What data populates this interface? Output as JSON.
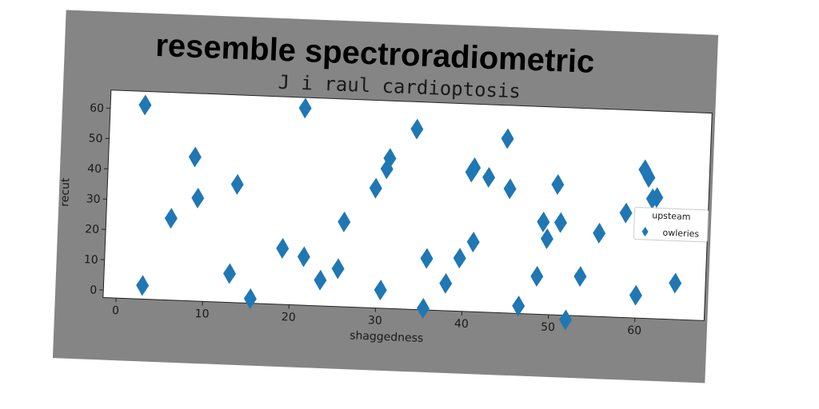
{
  "chart_data": {
    "type": "scatter",
    "figure_title": "resemble spectroradiometric",
    "title": "J i raul cardioptosis",
    "xlabel": "shaggedness",
    "ylabel": "recut",
    "xlim": [
      -1.5,
      68
    ],
    "ylim": [
      -2.5,
      66
    ],
    "xticks": [
      0,
      10,
      20,
      30,
      40,
      50,
      60
    ],
    "yticks": [
      0,
      10,
      20,
      30,
      40,
      50,
      60
    ],
    "grid": false,
    "legend": {
      "title": "upsteam",
      "placement": "right",
      "entries": [
        "owleries"
      ]
    },
    "series": [
      {
        "name": "owleries",
        "marker": "diamond",
        "color": "#1f77b4",
        "x": [
          2.5,
          3,
          6,
          8.5,
          9,
          13,
          13.5,
          15.5,
          19,
          21,
          21.5,
          23.5,
          25.5,
          26,
          29.5,
          30.5,
          30.7,
          31,
          34,
          35.5,
          35.7,
          38,
          39.5,
          40.5,
          40.8,
          41,
          42.5,
          44.5,
          45,
          46.5,
          48.5,
          49,
          49.5,
          50.5,
          51,
          52,
          53.5,
          55.5,
          58.5,
          60,
          60.5,
          61,
          61.5,
          62,
          64.5
        ],
        "y": [
          61.5,
          2,
          24.5,
          45,
          31.5,
          7,
          36.5,
          -1,
          16,
          62.5,
          13.5,
          6,
          10,
          25.5,
          37,
          3.5,
          43.5,
          47,
          57,
          -2,
          14.5,
          6.5,
          15,
          43.5,
          45,
          20.5,
          42,
          55,
          38.5,
          0,
          10,
          28,
          22.5,
          40.5,
          28,
          -4,
          10.5,
          25,
          32,
          5,
          46.5,
          44,
          37,
          37.5,
          9.5
        ]
      }
    ]
  }
}
